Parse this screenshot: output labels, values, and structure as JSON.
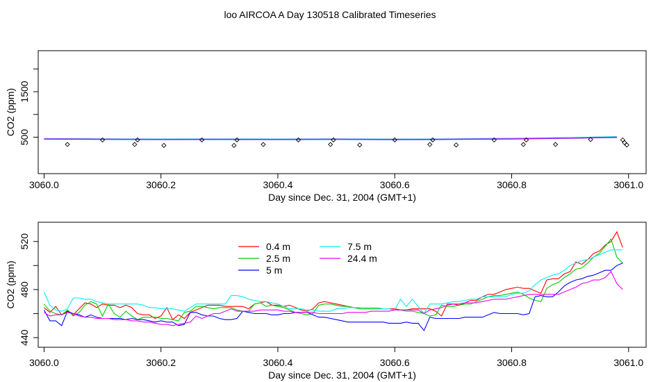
{
  "figure": {
    "title": "loo AIRCOA A  Day 130518  Calibrated Timeseries"
  },
  "chart_data": [
    {
      "type": "line",
      "title": "",
      "xlabel": "Day since Dec. 31, 2004 (GMT+1)",
      "ylabel": "CO2 (ppm)",
      "xlim": [
        3059.99,
        3061.03
      ],
      "ylim": [
        -300,
        2400
      ],
      "x_ticks": [
        3060.0,
        3060.2,
        3060.4,
        3060.6,
        3060.8,
        3061.0
      ],
      "x_tick_labels": [
        "3060.0",
        "3060.2",
        "3060.4",
        "3060.6",
        "3060.8",
        "3061.0"
      ],
      "y_ticks": [
        500,
        1000,
        1500,
        2000
      ],
      "y_tick_labels": [
        "500",
        "",
        "1500",
        ""
      ],
      "grid": false,
      "series": [
        {
          "color": "#ff0000",
          "x": [
            3060.0,
            3060.1,
            3060.2,
            3060.3,
            3060.4,
            3060.5,
            3060.6,
            3060.7,
            3060.8,
            3060.9,
            3060.98
          ],
          "values": [
            468,
            462,
            458,
            460,
            458,
            462,
            456,
            462,
            474,
            490,
            512
          ]
        },
        {
          "color": "#00cc00",
          "x": [
            3060.0,
            3060.1,
            3060.2,
            3060.3,
            3060.4,
            3060.5,
            3060.6,
            3060.7,
            3060.8,
            3060.9,
            3060.98
          ],
          "values": [
            466,
            460,
            456,
            458,
            456,
            460,
            455,
            460,
            470,
            488,
            508
          ]
        },
        {
          "color": "#0000ff",
          "x": [
            3060.0,
            3060.1,
            3060.2,
            3060.3,
            3060.4,
            3060.5,
            3060.6,
            3060.7,
            3060.8,
            3060.9,
            3060.98
          ],
          "values": [
            458,
            452,
            448,
            450,
            448,
            452,
            446,
            452,
            460,
            476,
            494
          ]
        },
        {
          "color": "#00eeee",
          "x": [
            3060.0,
            3060.1,
            3060.2,
            3060.3,
            3060.4,
            3060.5,
            3060.6,
            3060.7,
            3060.8,
            3060.9,
            3060.98
          ],
          "values": [
            472,
            466,
            462,
            464,
            462,
            466,
            460,
            466,
            476,
            492,
            515
          ]
        },
        {
          "color": "#ee00ee",
          "x": [
            3060.0,
            3060.1,
            3060.2,
            3060.3,
            3060.4,
            3060.5,
            3060.6,
            3060.7,
            3060.8,
            3060.9,
            3060.98
          ],
          "values": [
            464,
            458,
            454,
            456,
            454,
            458,
            452,
            458,
            466,
            482,
            500
          ]
        }
      ],
      "points": {
        "marker": "open-diamond",
        "x": [
          3060.04,
          3060.1,
          3060.155,
          3060.16,
          3060.205,
          3060.27,
          3060.325,
          3060.33,
          3060.375,
          3060.435,
          3060.49,
          3060.495,
          3060.54,
          3060.6,
          3060.66,
          3060.665,
          3060.705,
          3060.77,
          3060.82,
          3060.825,
          3060.875,
          3060.935,
          3060.99,
          3060.993,
          3060.997
        ],
        "values": [
          340,
          440,
          340,
          440,
          320,
          440,
          320,
          440,
          340,
          440,
          340,
          440,
          330,
          440,
          340,
          440,
          330,
          440,
          340,
          440,
          340,
          450,
          440,
          380,
          330
        ]
      }
    },
    {
      "type": "line",
      "title": "",
      "xlabel": "Day since Dec. 31, 2004 (GMT+1)",
      "ylabel": "CO2 (ppm)",
      "xlim": [
        3059.99,
        3061.03
      ],
      "ylim": [
        432,
        536
      ],
      "x_ticks": [
        3060.0,
        3060.2,
        3060.4,
        3060.6,
        3060.8,
        3061.0
      ],
      "x_tick_labels": [
        "3060.0",
        "3060.2",
        "3060.4",
        "3060.6",
        "3060.8",
        "3061.0"
      ],
      "y_ticks": [
        440,
        460,
        480,
        500,
        520
      ],
      "y_tick_labels": [
        "440",
        "",
        "480",
        "",
        "520"
      ],
      "grid": false,
      "legend": {
        "position": "top-left",
        "columns": 2
      },
      "x": [
        3060.0,
        3060.01,
        3060.02,
        3060.03,
        3060.04,
        3060.05,
        3060.06,
        3060.07,
        3060.08,
        3060.09,
        3060.1,
        3060.11,
        3060.12,
        3060.13,
        3060.14,
        3060.15,
        3060.16,
        3060.17,
        3060.18,
        3060.19,
        3060.2,
        3060.21,
        3060.22,
        3060.23,
        3060.24,
        3060.25,
        3060.26,
        3060.27,
        3060.28,
        3060.29,
        3060.3,
        3060.31,
        3060.32,
        3060.33,
        3060.34,
        3060.35,
        3060.36,
        3060.37,
        3060.38,
        3060.39,
        3060.4,
        3060.41,
        3060.42,
        3060.43,
        3060.44,
        3060.45,
        3060.46,
        3060.47,
        3060.48,
        3060.49,
        3060.5,
        3060.51,
        3060.52,
        3060.53,
        3060.54,
        3060.55,
        3060.56,
        3060.57,
        3060.58,
        3060.59,
        3060.6,
        3060.61,
        3060.62,
        3060.63,
        3060.64,
        3060.65,
        3060.66,
        3060.67,
        3060.68,
        3060.69,
        3060.7,
        3060.71,
        3060.72,
        3060.73,
        3060.74,
        3060.75,
        3060.76,
        3060.77,
        3060.78,
        3060.79,
        3060.8,
        3060.81,
        3060.82,
        3060.83,
        3060.84,
        3060.85,
        3060.86,
        3060.87,
        3060.88,
        3060.89,
        3060.9,
        3060.91,
        3060.92,
        3060.93,
        3060.94,
        3060.95,
        3060.96,
        3060.97,
        3060.98,
        3060.99
      ],
      "series": [
        {
          "name": "0.4 m",
          "color": "#ff0000",
          "values": [
            465,
            461,
            466,
            459,
            462,
            459,
            464,
            469,
            468,
            465,
            468,
            467,
            467,
            465,
            467,
            465,
            460,
            459,
            459,
            456,
            458,
            465,
            455,
            459,
            456,
            461,
            463,
            465,
            467,
            467,
            467,
            466,
            466,
            466,
            466,
            464,
            468,
            469,
            470,
            467,
            467,
            466,
            467,
            465,
            463,
            462,
            464,
            469,
            470,
            469,
            468,
            467,
            466,
            465,
            464,
            464,
            464,
            464,
            464,
            464,
            464,
            463,
            463,
            464,
            464,
            464,
            464,
            462,
            458,
            468,
            468,
            467,
            469,
            471,
            471,
            474,
            476,
            476,
            478,
            480,
            481,
            482,
            481,
            481,
            479,
            477,
            488,
            489,
            489,
            493,
            495,
            503,
            501,
            505,
            510,
            512,
            517,
            520,
            528,
            515
          ]
        },
        {
          "name": "2.5 m",
          "color": "#00cc00",
          "values": [
            468,
            462,
            460,
            459,
            463,
            458,
            461,
            467,
            470,
            468,
            458,
            468,
            460,
            457,
            462,
            458,
            455,
            457,
            457,
            457,
            456,
            456,
            455,
            454,
            461,
            462,
            466,
            466,
            465,
            464,
            465,
            465,
            465,
            463,
            462,
            462,
            468,
            469,
            466,
            467,
            466,
            465,
            463,
            461,
            460,
            459,
            460,
            467,
            468,
            468,
            467,
            466,
            466,
            465,
            464,
            464,
            464,
            464,
            464,
            464,
            463,
            463,
            462,
            462,
            461,
            460,
            458,
            459,
            467,
            466,
            466,
            467,
            468,
            468,
            470,
            472,
            474,
            475,
            475,
            476,
            477,
            478,
            476,
            473,
            471,
            470,
            481,
            484,
            486,
            490,
            493,
            497,
            498,
            502,
            507,
            510,
            516,
            522,
            507,
            502
          ]
        },
        {
          "name": "5 m",
          "color": "#0000ff",
          "values": [
            463,
            454,
            454,
            450,
            462,
            460,
            459,
            457,
            459,
            457,
            456,
            456,
            456,
            456,
            455,
            456,
            455,
            455,
            454,
            453,
            454,
            453,
            453,
            450,
            451,
            461,
            461,
            459,
            458,
            458,
            456,
            455,
            455,
            456,
            462,
            461,
            460,
            460,
            460,
            459,
            459,
            460,
            460,
            461,
            461,
            461,
            459,
            457,
            457,
            456,
            455,
            454,
            453,
            453,
            453,
            453,
            453,
            453,
            453,
            452,
            452,
            452,
            453,
            452,
            452,
            446,
            457,
            456,
            456,
            456,
            456,
            456,
            457,
            457,
            457,
            457,
            459,
            461,
            460,
            460,
            460,
            460,
            459,
            460,
            474,
            475,
            474,
            474,
            478,
            483,
            486,
            488,
            489,
            491,
            492,
            494,
            496,
            496,
            500,
            502
          ]
        },
        {
          "name": "7.5 m",
          "color": "#00eeee",
          "values": [
            478,
            467,
            463,
            462,
            464,
            473,
            473,
            472,
            472,
            470,
            469,
            468,
            468,
            468,
            468,
            468,
            468,
            467,
            465,
            465,
            464,
            464,
            464,
            463,
            462,
            465,
            468,
            468,
            468,
            468,
            468,
            468,
            475,
            475,
            474,
            472,
            471,
            470,
            470,
            469,
            468,
            466,
            464,
            464,
            464,
            463,
            463,
            462,
            462,
            462,
            464,
            464,
            465,
            465,
            465,
            465,
            465,
            465,
            464,
            464,
            463,
            472,
            466,
            472,
            466,
            460,
            468,
            468,
            468,
            469,
            470,
            470,
            471,
            472,
            472,
            474,
            474,
            474,
            474,
            474,
            476,
            477,
            477,
            479,
            484,
            488,
            490,
            492,
            493,
            496,
            500,
            502,
            504,
            505,
            507,
            509,
            511,
            513,
            513,
            513
          ]
        },
        {
          "name": "24.4 m",
          "color": "#ee00ee",
          "values": [
            461,
            458,
            459,
            459,
            461,
            460,
            458,
            457,
            457,
            456,
            456,
            456,
            455,
            455,
            455,
            454,
            454,
            453,
            453,
            452,
            451,
            451,
            450,
            451,
            452,
            453,
            458,
            456,
            458,
            460,
            460,
            462,
            464,
            462,
            462,
            462,
            462,
            463,
            463,
            463,
            463,
            462,
            462,
            461,
            461,
            461,
            461,
            460,
            460,
            460,
            460,
            460,
            461,
            461,
            461,
            461,
            462,
            462,
            462,
            462,
            463,
            463,
            463,
            463,
            463,
            460,
            463,
            464,
            465,
            467,
            468,
            468,
            469,
            469,
            469,
            470,
            471,
            472,
            472,
            472,
            473,
            474,
            475,
            476,
            476,
            476,
            476,
            476,
            476,
            478,
            480,
            482,
            485,
            486,
            488,
            488,
            490,
            495,
            485,
            480
          ]
        }
      ]
    }
  ]
}
